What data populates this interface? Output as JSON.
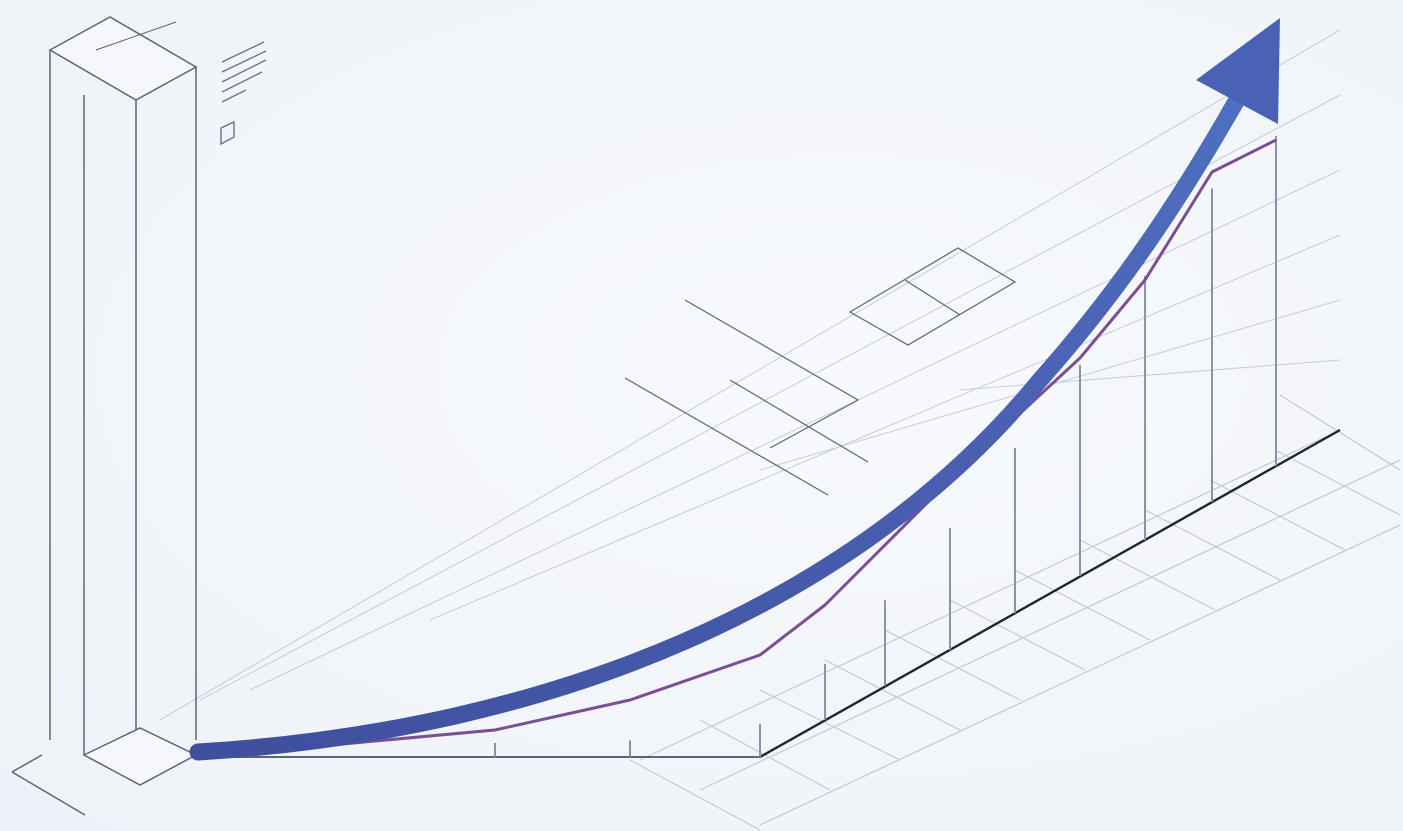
{
  "illustration": {
    "subject": "growth-trend",
    "colors": {
      "background": "#f3f6fa",
      "grid": "#c3cad6",
      "structure": "#5c6578",
      "bar": "#8a93a6",
      "axis": "#1f2536",
      "trend_line": "#7a4f93",
      "arrow": "#4358a8",
      "arrow_highlight": "#5b72c9"
    },
    "icons": [
      "building-icon",
      "document-lines-icon",
      "growth-arrow-icon"
    ],
    "bar_levels": [
      0.02,
      0.05,
      0.1,
      0.17,
      0.26,
      0.37,
      0.5,
      0.64,
      0.8,
      0.95,
      1.0
    ]
  }
}
